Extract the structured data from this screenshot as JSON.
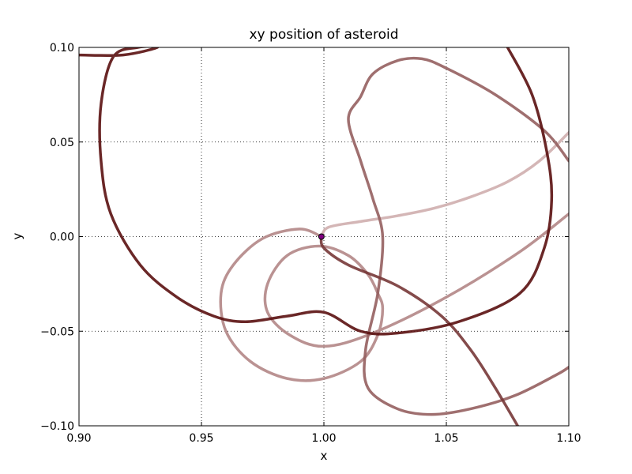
{
  "chart_data": {
    "type": "line",
    "title": "xy position of asteroid",
    "xlabel": "x",
    "ylabel": "y",
    "xlim": [
      0.9,
      1.1
    ],
    "ylim": [
      -0.1,
      0.1
    ],
    "x_ticks": [
      0.9,
      0.95,
      1.0,
      1.05,
      1.1
    ],
    "x_tick_labels": [
      "0.90",
      "0.95",
      "1.00",
      "1.05",
      "1.10"
    ],
    "y_ticks": [
      -0.1,
      -0.05,
      0.0,
      0.05,
      0.1
    ],
    "y_tick_labels": [
      "−0.10",
      "−0.05",
      "0.00",
      "0.05",
      "0.10"
    ],
    "grid": true,
    "grid_style": "dotted",
    "line_color_start": "#cfaeae",
    "line_color_end": "#5a0f0f",
    "marker_color": "#800080",
    "marker": {
      "x": 0.999,
      "y": 0.0
    },
    "series": [
      {
        "x": [
          0.999,
          1.002,
          1.015,
          1.03,
          1.045,
          1.06,
          1.075,
          1.088,
          1.1
        ],
        "y": [
          0.0,
          0.005,
          0.008,
          0.011,
          0.015,
          0.021,
          0.029,
          0.04,
          0.055
        ]
      },
      {
        "x": [
          0.999,
          0.99,
          0.975,
          0.963,
          0.958,
          0.96,
          0.97,
          0.985,
          1.0,
          1.015,
          1.022,
          1.024,
          1.022,
          1.018,
          1.01,
          0.998,
          0.985,
          0.977,
          0.977,
          0.986,
          1.0,
          1.02,
          1.05,
          1.08,
          1.1
        ],
        "y": [
          0.0,
          0.004,
          -0.001,
          -0.015,
          -0.03,
          -0.05,
          -0.066,
          -0.075,
          -0.075,
          -0.066,
          -0.052,
          -0.038,
          -0.03,
          -0.02,
          -0.01,
          -0.005,
          -0.01,
          -0.025,
          -0.04,
          -0.052,
          -0.058,
          -0.051,
          -0.032,
          -0.008,
          0.012
        ]
      },
      {
        "x": [
          1.1,
          1.09,
          1.07,
          1.05,
          1.04,
          1.03,
          1.02,
          1.015,
          1.01,
          1.015,
          1.02,
          1.024,
          1.022,
          1.017,
          1.018,
          1.03,
          1.044,
          1.06,
          1.078,
          1.095,
          1.1
        ],
        "y": [
          0.04,
          0.056,
          0.075,
          0.089,
          0.094,
          0.093,
          0.086,
          0.074,
          0.062,
          0.04,
          0.02,
          0.0,
          -0.03,
          -0.06,
          -0.08,
          -0.091,
          -0.094,
          -0.091,
          -0.084,
          -0.073,
          -0.069
        ]
      },
      {
        "x": [
          0.999,
          1.0,
          1.01,
          1.03,
          1.048,
          1.06,
          1.07,
          1.08
        ],
        "y": [
          0.0,
          -0.006,
          -0.015,
          -0.026,
          -0.042,
          -0.06,
          -0.08,
          -0.102
        ]
      },
      {
        "x": [
          0.9,
          0.918,
          0.932,
          0.924,
          0.914,
          0.909,
          0.909,
          0.913,
          0.925,
          0.94,
          0.955,
          0.968,
          0.985,
          1.0,
          1.015,
          1.03,
          1.055,
          1.08,
          1.09,
          1.093,
          1.091,
          1.085,
          1.075
        ],
        "y": [
          0.096,
          0.096,
          0.1,
          0.1,
          0.095,
          0.07,
          0.04,
          0.012,
          -0.015,
          -0.032,
          -0.042,
          -0.045,
          -0.042,
          -0.04,
          -0.05,
          -0.051,
          -0.045,
          -0.03,
          -0.006,
          0.02,
          0.045,
          0.075,
          0.1
        ]
      }
    ]
  }
}
